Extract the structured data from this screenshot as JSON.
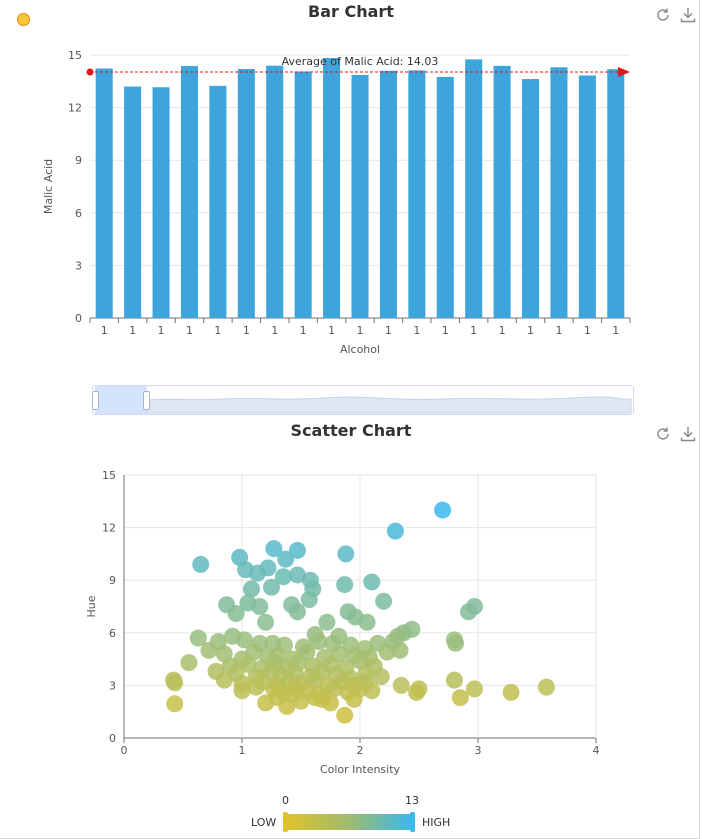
{
  "bar_chart": {
    "title": "Bar Chart",
    "avg_label": "Average of Malic Acid: 14.03"
  },
  "scatter_chart": {
    "title": "Scatter Chart"
  },
  "toolbox": {
    "restore_icon": "refresh-icon",
    "save_icon": "download-icon"
  },
  "visual_map": {
    "min_label": "0",
    "max_label": "13",
    "low_text": "LOW",
    "high_text": "HIGH",
    "colors": [
      "#e0c22c",
      "#3bb8ec"
    ]
  },
  "colors": {
    "bar": "#3ea4dc",
    "markline": "#e0161b"
  },
  "chart_data": [
    {
      "type": "bar",
      "title": "Bar Chart",
      "xlabel": "Alcohol",
      "ylabel": "Malic Acid",
      "categories": [
        "1",
        "1",
        "1",
        "1",
        "1",
        "1",
        "1",
        "1",
        "1",
        "1",
        "1",
        "1",
        "1",
        "1",
        "1",
        "1",
        "1",
        "1",
        "1"
      ],
      "values": [
        14.23,
        13.2,
        13.16,
        14.37,
        13.24,
        14.2,
        14.39,
        14.06,
        14.83,
        13.86,
        14.1,
        14.12,
        13.75,
        14.75,
        14.38,
        13.63,
        14.3,
        13.83,
        14.19
      ],
      "ylim": [
        0,
        15
      ],
      "yticks": [
        0,
        3,
        6,
        9,
        12,
        15
      ],
      "markline": {
        "type": "average",
        "value": 14.03
      },
      "grid": true
    },
    {
      "type": "scatter",
      "title": "Scatter Chart",
      "xlabel": "Color Intensity",
      "ylabel": "Hue",
      "xlim": [
        0,
        4
      ],
      "ylim": [
        0,
        15
      ],
      "xticks": [
        0,
        1,
        2,
        3,
        4
      ],
      "yticks": [
        0,
        3,
        6,
        9,
        12,
        15
      ],
      "grid": true,
      "points": [
        [
          2.7,
          13.0
        ],
        [
          2.3,
          11.8
        ],
        [
          1.27,
          10.8
        ],
        [
          1.47,
          10.7
        ],
        [
          0.98,
          10.3
        ],
        [
          1.37,
          10.2
        ],
        [
          1.88,
          10.5
        ],
        [
          0.65,
          9.9
        ],
        [
          1.03,
          9.6
        ],
        [
          1.22,
          9.7
        ],
        [
          1.47,
          9.3
        ],
        [
          1.13,
          9.4
        ],
        [
          1.58,
          9.0
        ],
        [
          1.35,
          9.2
        ],
        [
          2.1,
          8.9
        ],
        [
          1.25,
          8.6
        ],
        [
          1.08,
          8.5
        ],
        [
          1.6,
          8.5
        ],
        [
          1.87,
          8.75
        ],
        [
          0.87,
          7.6
        ],
        [
          1.05,
          7.7
        ],
        [
          1.15,
          7.5
        ],
        [
          1.42,
          7.6
        ],
        [
          1.57,
          7.9
        ],
        [
          0.95,
          7.1
        ],
        [
          1.47,
          7.2
        ],
        [
          1.9,
          7.2
        ],
        [
          2.2,
          7.8
        ],
        [
          2.92,
          7.2
        ],
        [
          2.97,
          7.5
        ],
        [
          1.2,
          6.6
        ],
        [
          1.72,
          6.6
        ],
        [
          1.96,
          6.9
        ],
        [
          2.06,
          6.6
        ],
        [
          2.37,
          6.0
        ],
        [
          2.44,
          6.2
        ],
        [
          2.32,
          5.8
        ],
        [
          2.28,
          5.5
        ],
        [
          1.82,
          5.8
        ],
        [
          1.62,
          5.9
        ],
        [
          0.63,
          5.7
        ],
        [
          0.8,
          5.5
        ],
        [
          0.92,
          5.8
        ],
        [
          1.02,
          5.6
        ],
        [
          1.15,
          5.4
        ],
        [
          1.26,
          5.4
        ],
        [
          1.36,
          5.3
        ],
        [
          1.52,
          5.2
        ],
        [
          1.65,
          5.5
        ],
        [
          1.77,
          5.4
        ],
        [
          1.92,
          5.3
        ],
        [
          2.04,
          5.1
        ],
        [
          2.15,
          5.4
        ],
        [
          2.81,
          5.4
        ],
        [
          2.8,
          5.6
        ],
        [
          0.72,
          5.0
        ],
        [
          0.85,
          4.8
        ],
        [
          1.0,
          4.5
        ],
        [
          1.1,
          4.9
        ],
        [
          1.22,
          4.6
        ],
        [
          1.3,
          4.7
        ],
        [
          1.43,
          4.5
        ],
        [
          1.55,
          4.9
        ],
        [
          1.7,
          4.6
        ],
        [
          1.82,
          4.8
        ],
        [
          1.95,
          4.7
        ],
        [
          2.08,
          4.6
        ],
        [
          2.23,
          4.9
        ],
        [
          2.34,
          5.0
        ],
        [
          0.55,
          4.3
        ],
        [
          0.9,
          4.1
        ],
        [
          1.05,
          4.2
        ],
        [
          1.17,
          4.0
        ],
        [
          1.28,
          4.3
        ],
        [
          1.38,
          4.0
        ],
        [
          1.48,
          4.3
        ],
        [
          1.6,
          4.1
        ],
        [
          1.75,
          4.2
        ],
        [
          1.88,
          4.0
        ],
        [
          2.0,
          4.4
        ],
        [
          2.12,
          4.1
        ],
        [
          0.78,
          3.8
        ],
        [
          0.95,
          3.7
        ],
        [
          1.12,
          3.5
        ],
        [
          1.25,
          3.8
        ],
        [
          1.33,
          3.6
        ],
        [
          1.45,
          3.7
        ],
        [
          1.58,
          3.5
        ],
        [
          1.68,
          3.8
        ],
        [
          1.8,
          3.6
        ],
        [
          1.92,
          3.4
        ],
        [
          2.05,
          3.7
        ],
        [
          2.18,
          3.5
        ],
        [
          0.42,
          3.3
        ],
        [
          0.43,
          3.15
        ],
        [
          0.85,
          3.3
        ],
        [
          1.0,
          3.1
        ],
        [
          1.18,
          3.2
        ],
        [
          1.3,
          3.0
        ],
        [
          1.4,
          3.2
        ],
        [
          1.5,
          3.1
        ],
        [
          1.62,
          3.3
        ],
        [
          1.73,
          3.0
        ],
        [
          1.85,
          3.2
        ],
        [
          1.95,
          3.0
        ],
        [
          2.05,
          3.2
        ],
        [
          2.35,
          3.0
        ],
        [
          2.8,
          3.3
        ],
        [
          1.0,
          2.7
        ],
        [
          1.12,
          2.9
        ],
        [
          1.27,
          2.8
        ],
        [
          1.35,
          2.6
        ],
        [
          1.45,
          2.9
        ],
        [
          1.55,
          2.7
        ],
        [
          1.65,
          2.5
        ],
        [
          1.78,
          2.8
        ],
        [
          1.9,
          2.6
        ],
        [
          2.0,
          2.8
        ],
        [
          2.1,
          2.7
        ],
        [
          2.5,
          2.8
        ],
        [
          2.48,
          2.6
        ],
        [
          2.97,
          2.8
        ],
        [
          3.28,
          2.6
        ],
        [
          3.58,
          2.9
        ],
        [
          2.85,
          2.3
        ],
        [
          1.2,
          2.0
        ],
        [
          1.38,
          1.8
        ],
        [
          1.5,
          2.1
        ],
        [
          1.68,
          2.2
        ],
        [
          1.75,
          2.0
        ],
        [
          1.95,
          2.2
        ],
        [
          0.43,
          1.95
        ],
        [
          1.87,
          1.3
        ],
        [
          1.42,
          2.5
        ],
        [
          1.62,
          2.3
        ],
        [
          1.3,
          2.3
        ]
      ]
    }
  ]
}
